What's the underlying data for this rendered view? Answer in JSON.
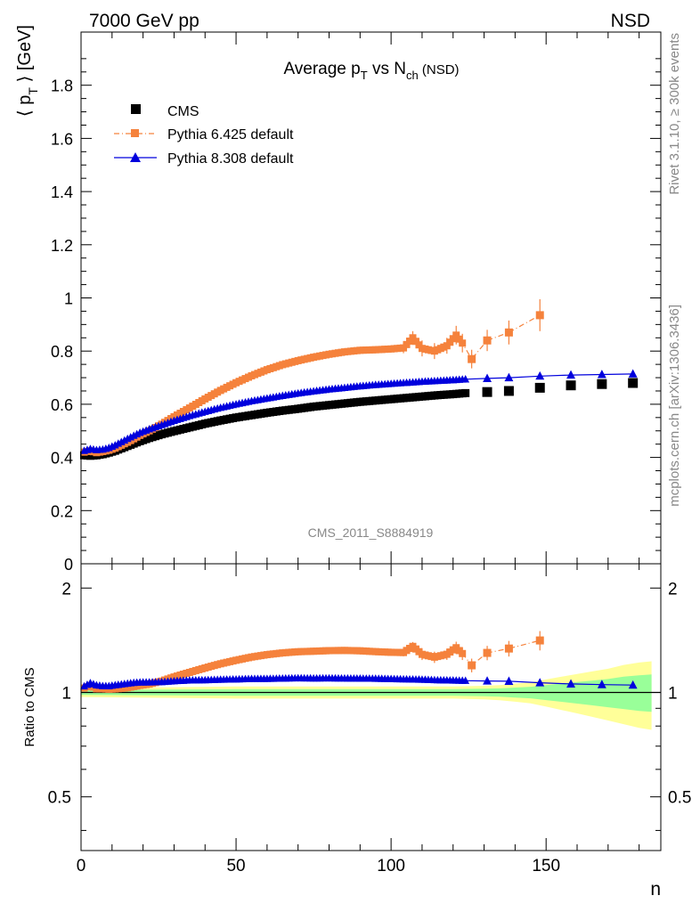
{
  "header": {
    "left": "7000 GeV pp",
    "right": "NSD"
  },
  "side": {
    "rivet": "Rivet 3.1.10, ≥ 300k events",
    "mcplots": "mcplots.cern.ch [arXiv:1306.3436]"
  },
  "chart_data": {
    "type": "scatter",
    "title": "Average p_T vs N_ch (NSD)",
    "title_parts": {
      "a": "Average p",
      "a_sub": "T",
      "b": " vs N",
      "b_sub": "ch",
      "c": " (NSD)"
    },
    "ylabel": "⟨ p_T ⟩ [GeV]",
    "ylabel_parts": {
      "a": "⟨ p",
      "sub": "T",
      "b": " ⟩ [GeV]"
    },
    "xlabel": "n",
    "ratio_ylabel": "Ratio to CMS",
    "watermark": "CMS_2011_S8884919",
    "xlim": [
      0,
      187
    ],
    "ylim": [
      0,
      2.0
    ],
    "ratio_ylim": [
      0.35,
      2.35
    ],
    "x_ticks": [
      0,
      50,
      100,
      150
    ],
    "y_ticks": [
      "0",
      "0.2",
      "0.4",
      "0.6",
      "0.8",
      "1",
      "1.2",
      "1.4",
      "1.6",
      "1.8"
    ],
    "ratio_ticks": [
      "0.5",
      "1",
      "2"
    ],
    "legend": [
      {
        "name": "CMS",
        "color": "#000000",
        "marker": "square"
      },
      {
        "name": "Pythia 6.425 default",
        "color": "#f5823c",
        "marker": "square",
        "line": "dash-dot"
      },
      {
        "name": "Pythia 8.308 default",
        "color": "#0000dd",
        "marker": "triangle",
        "line": "solid"
      }
    ],
    "series": [
      {
        "name": "CMS",
        "points": [
          [
            1,
            0.408
          ],
          [
            3,
            0.406
          ],
          [
            5,
            0.408
          ],
          [
            7,
            0.412
          ],
          [
            9,
            0.418
          ],
          [
            11,
            0.425
          ],
          [
            13,
            0.434
          ],
          [
            15,
            0.443
          ],
          [
            17,
            0.452
          ],
          [
            19,
            0.461
          ],
          [
            22,
            0.473
          ],
          [
            26,
            0.487
          ],
          [
            30,
            0.499
          ],
          [
            35,
            0.513
          ],
          [
            40,
            0.527
          ],
          [
            45,
            0.539
          ],
          [
            50,
            0.55
          ],
          [
            55,
            0.559
          ],
          [
            60,
            0.568
          ],
          [
            65,
            0.576
          ],
          [
            70,
            0.583
          ],
          [
            75,
            0.591
          ],
          [
            80,
            0.597
          ],
          [
            85,
            0.603
          ],
          [
            90,
            0.609
          ],
          [
            95,
            0.614
          ],
          [
            100,
            0.619
          ],
          [
            105,
            0.624
          ],
          [
            110,
            0.629
          ],
          [
            115,
            0.634
          ],
          [
            120,
            0.638
          ],
          [
            124,
            0.642
          ],
          [
            131,
            0.646
          ],
          [
            138,
            0.65
          ],
          [
            148,
            0.662
          ],
          [
            158,
            0.671
          ],
          [
            168,
            0.676
          ],
          [
            178,
            0.68
          ]
        ]
      },
      {
        "name": "Pythia 6.425 default",
        "points": [
          [
            1,
            0.42
          ],
          [
            3,
            0.425
          ],
          [
            5,
            0.418
          ],
          [
            7,
            0.422
          ],
          [
            9,
            0.427
          ],
          [
            11,
            0.435
          ],
          [
            13,
            0.446
          ],
          [
            15,
            0.457
          ],
          [
            17,
            0.47
          ],
          [
            19,
            0.483
          ],
          [
            22,
            0.5
          ],
          [
            26,
            0.525
          ],
          [
            30,
            0.553
          ],
          [
            35,
            0.586
          ],
          [
            40,
            0.62
          ],
          [
            45,
            0.652
          ],
          [
            50,
            0.681
          ],
          [
            55,
            0.707
          ],
          [
            60,
            0.73
          ],
          [
            65,
            0.749
          ],
          [
            70,
            0.764
          ],
          [
            75,
            0.777
          ],
          [
            80,
            0.788
          ],
          [
            85,
            0.797
          ],
          [
            90,
            0.803
          ],
          [
            95,
            0.805
          ],
          [
            100,
            0.808
          ],
          [
            104,
            0.812
          ],
          [
            107,
            0.85
          ],
          [
            110,
            0.81
          ],
          [
            114,
            0.8
          ],
          [
            118,
            0.82
          ],
          [
            121,
            0.86
          ],
          [
            123,
            0.83
          ],
          [
            126,
            0.77
          ],
          [
            131,
            0.84
          ],
          [
            138,
            0.87
          ],
          [
            148,
            0.935
          ]
        ],
        "errors": [
          [
            104,
            0.02
          ],
          [
            107,
            0.025
          ],
          [
            110,
            0.03
          ],
          [
            114,
            0.03
          ],
          [
            118,
            0.03
          ],
          [
            121,
            0.035
          ],
          [
            123,
            0.035
          ],
          [
            126,
            0.035
          ],
          [
            131,
            0.04
          ],
          [
            138,
            0.045
          ],
          [
            148,
            0.06
          ]
        ]
      },
      {
        "name": "Pythia 8.308 default",
        "points": [
          [
            1,
            0.425
          ],
          [
            3,
            0.432
          ],
          [
            5,
            0.428
          ],
          [
            7,
            0.43
          ],
          [
            9,
            0.436
          ],
          [
            11,
            0.446
          ],
          [
            13,
            0.458
          ],
          [
            15,
            0.47
          ],
          [
            17,
            0.482
          ],
          [
            19,
            0.493
          ],
          [
            22,
            0.506
          ],
          [
            26,
            0.522
          ],
          [
            30,
            0.538
          ],
          [
            35,
            0.556
          ],
          [
            40,
            0.572
          ],
          [
            45,
            0.587
          ],
          [
            50,
            0.6
          ],
          [
            55,
            0.612
          ],
          [
            60,
            0.622
          ],
          [
            65,
            0.632
          ],
          [
            70,
            0.641
          ],
          [
            75,
            0.649
          ],
          [
            80,
            0.656
          ],
          [
            85,
            0.662
          ],
          [
            90,
            0.668
          ],
          [
            95,
            0.673
          ],
          [
            100,
            0.677
          ],
          [
            105,
            0.681
          ],
          [
            110,
            0.685
          ],
          [
            115,
            0.688
          ],
          [
            120,
            0.691
          ],
          [
            124,
            0.694
          ],
          [
            131,
            0.697
          ],
          [
            138,
            0.7
          ],
          [
            148,
            0.706
          ],
          [
            158,
            0.71
          ],
          [
            168,
            0.712
          ],
          [
            178,
            0.714
          ]
        ]
      }
    ],
    "ratio_band": [
      [
        0,
        0.97,
        1.03
      ],
      [
        25,
        0.965,
        1.035
      ],
      [
        50,
        0.96,
        1.04
      ],
      [
        75,
        0.96,
        1.04
      ],
      [
        100,
        0.96,
        1.04
      ],
      [
        120,
        0.96,
        1.04
      ],
      [
        130,
        0.955,
        1.045
      ],
      [
        135,
        0.95,
        1.05
      ],
      [
        140,
        0.94,
        1.06
      ],
      [
        145,
        0.93,
        1.07
      ],
      [
        150,
        0.91,
        1.09
      ],
      [
        155,
        0.89,
        1.11
      ],
      [
        160,
        0.87,
        1.13
      ],
      [
        165,
        0.85,
        1.15
      ],
      [
        170,
        0.83,
        1.17
      ],
      [
        175,
        0.81,
        1.2
      ],
      [
        180,
        0.79,
        1.22
      ],
      [
        184,
        0.78,
        1.23
      ]
    ]
  }
}
